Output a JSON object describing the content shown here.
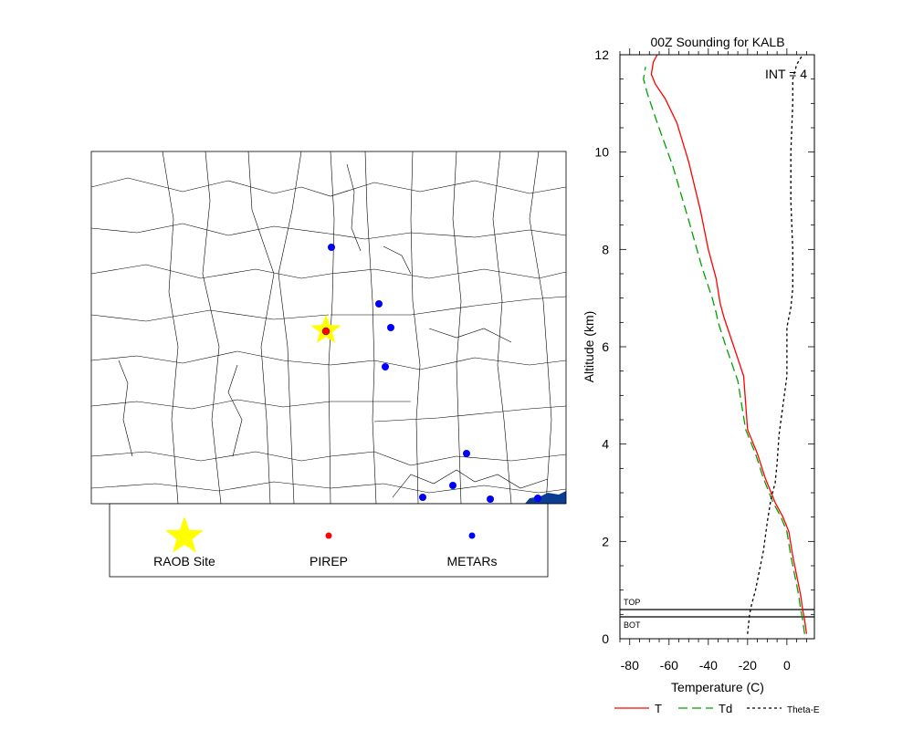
{
  "map": {
    "legend": {
      "raob_label": "RAOB Site",
      "pirep_label": "PIREP",
      "metar_label": "METARs"
    },
    "colors": {
      "raob": "#ffff00",
      "pirep": "#ff0000",
      "metar": "#0000ff",
      "water": "#0b3d91"
    }
  },
  "chart_data": {
    "type": "line",
    "title": "00Z Sounding for KALB",
    "annotation": "INT = 4",
    "xlabel": "Temperature (C)",
    "ylabel": "Altitude (km)",
    "xlim": [
      -85,
      14
    ],
    "ylim": [
      0,
      12
    ],
    "xticks": [
      -80,
      -60,
      -40,
      -20,
      0
    ],
    "yticks": [
      0,
      2,
      4,
      6,
      8,
      10,
      12
    ],
    "grid": false,
    "legend_position": "bottom",
    "levels": [
      {
        "label": "TOP",
        "altitude": 0.6
      },
      {
        "label": "BOT",
        "altitude": 0.45
      }
    ],
    "series": [
      {
        "name": "T",
        "color": "#ff0000",
        "dash": "",
        "x": [
          10,
          9,
          8,
          7,
          3,
          1,
          -2,
          -6,
          -11,
          -15,
          -20,
          -22,
          -27,
          -32,
          -34,
          -36,
          -40,
          -44,
          -50,
          -56,
          -62,
          -67,
          -69,
          -68,
          -66
        ],
        "y": [
          0.1,
          0.4,
          0.6,
          0.9,
          1.7,
          2.2,
          2.5,
          2.8,
          3.3,
          3.8,
          4.3,
          5.4,
          6.0,
          6.6,
          6.9,
          7.4,
          8.0,
          8.8,
          9.8,
          10.6,
          11.1,
          11.4,
          11.6,
          11.85,
          12.0
        ]
      },
      {
        "name": "Td",
        "color": "#00a000",
        "dash": "10,5",
        "x": [
          9,
          8,
          7,
          6,
          2,
          0,
          -3,
          -7,
          -12,
          -16,
          -21,
          -25,
          -31,
          -35,
          -36,
          -38,
          -43,
          -50,
          -58,
          -66,
          -71,
          -73,
          -72
        ],
        "y": [
          0.1,
          0.4,
          0.6,
          0.9,
          1.7,
          2.2,
          2.5,
          2.8,
          3.3,
          3.8,
          4.3,
          5.3,
          6.0,
          6.5,
          6.7,
          7.0,
          7.6,
          8.6,
          9.7,
          10.6,
          11.2,
          11.5,
          11.75
        ]
      },
      {
        "name": "Theta-E",
        "color": "#000000",
        "dash": "3,3",
        "x": [
          -20,
          -19,
          -18,
          -16,
          -14,
          -12,
          -10,
          -8,
          -6,
          -5,
          -4,
          -2,
          0,
          0,
          0,
          1,
          2,
          3,
          3,
          2,
          2,
          3,
          3,
          5,
          8
        ],
        "y": [
          0.1,
          0.5,
          0.7,
          1.0,
          1.4,
          1.8,
          2.4,
          2.9,
          3.2,
          3.6,
          4.2,
          4.8,
          5.4,
          6.0,
          6.4,
          6.6,
          6.8,
          7.2,
          8.0,
          9.0,
          10.0,
          11.0,
          11.5,
          11.8,
          12.0
        ]
      }
    ]
  }
}
